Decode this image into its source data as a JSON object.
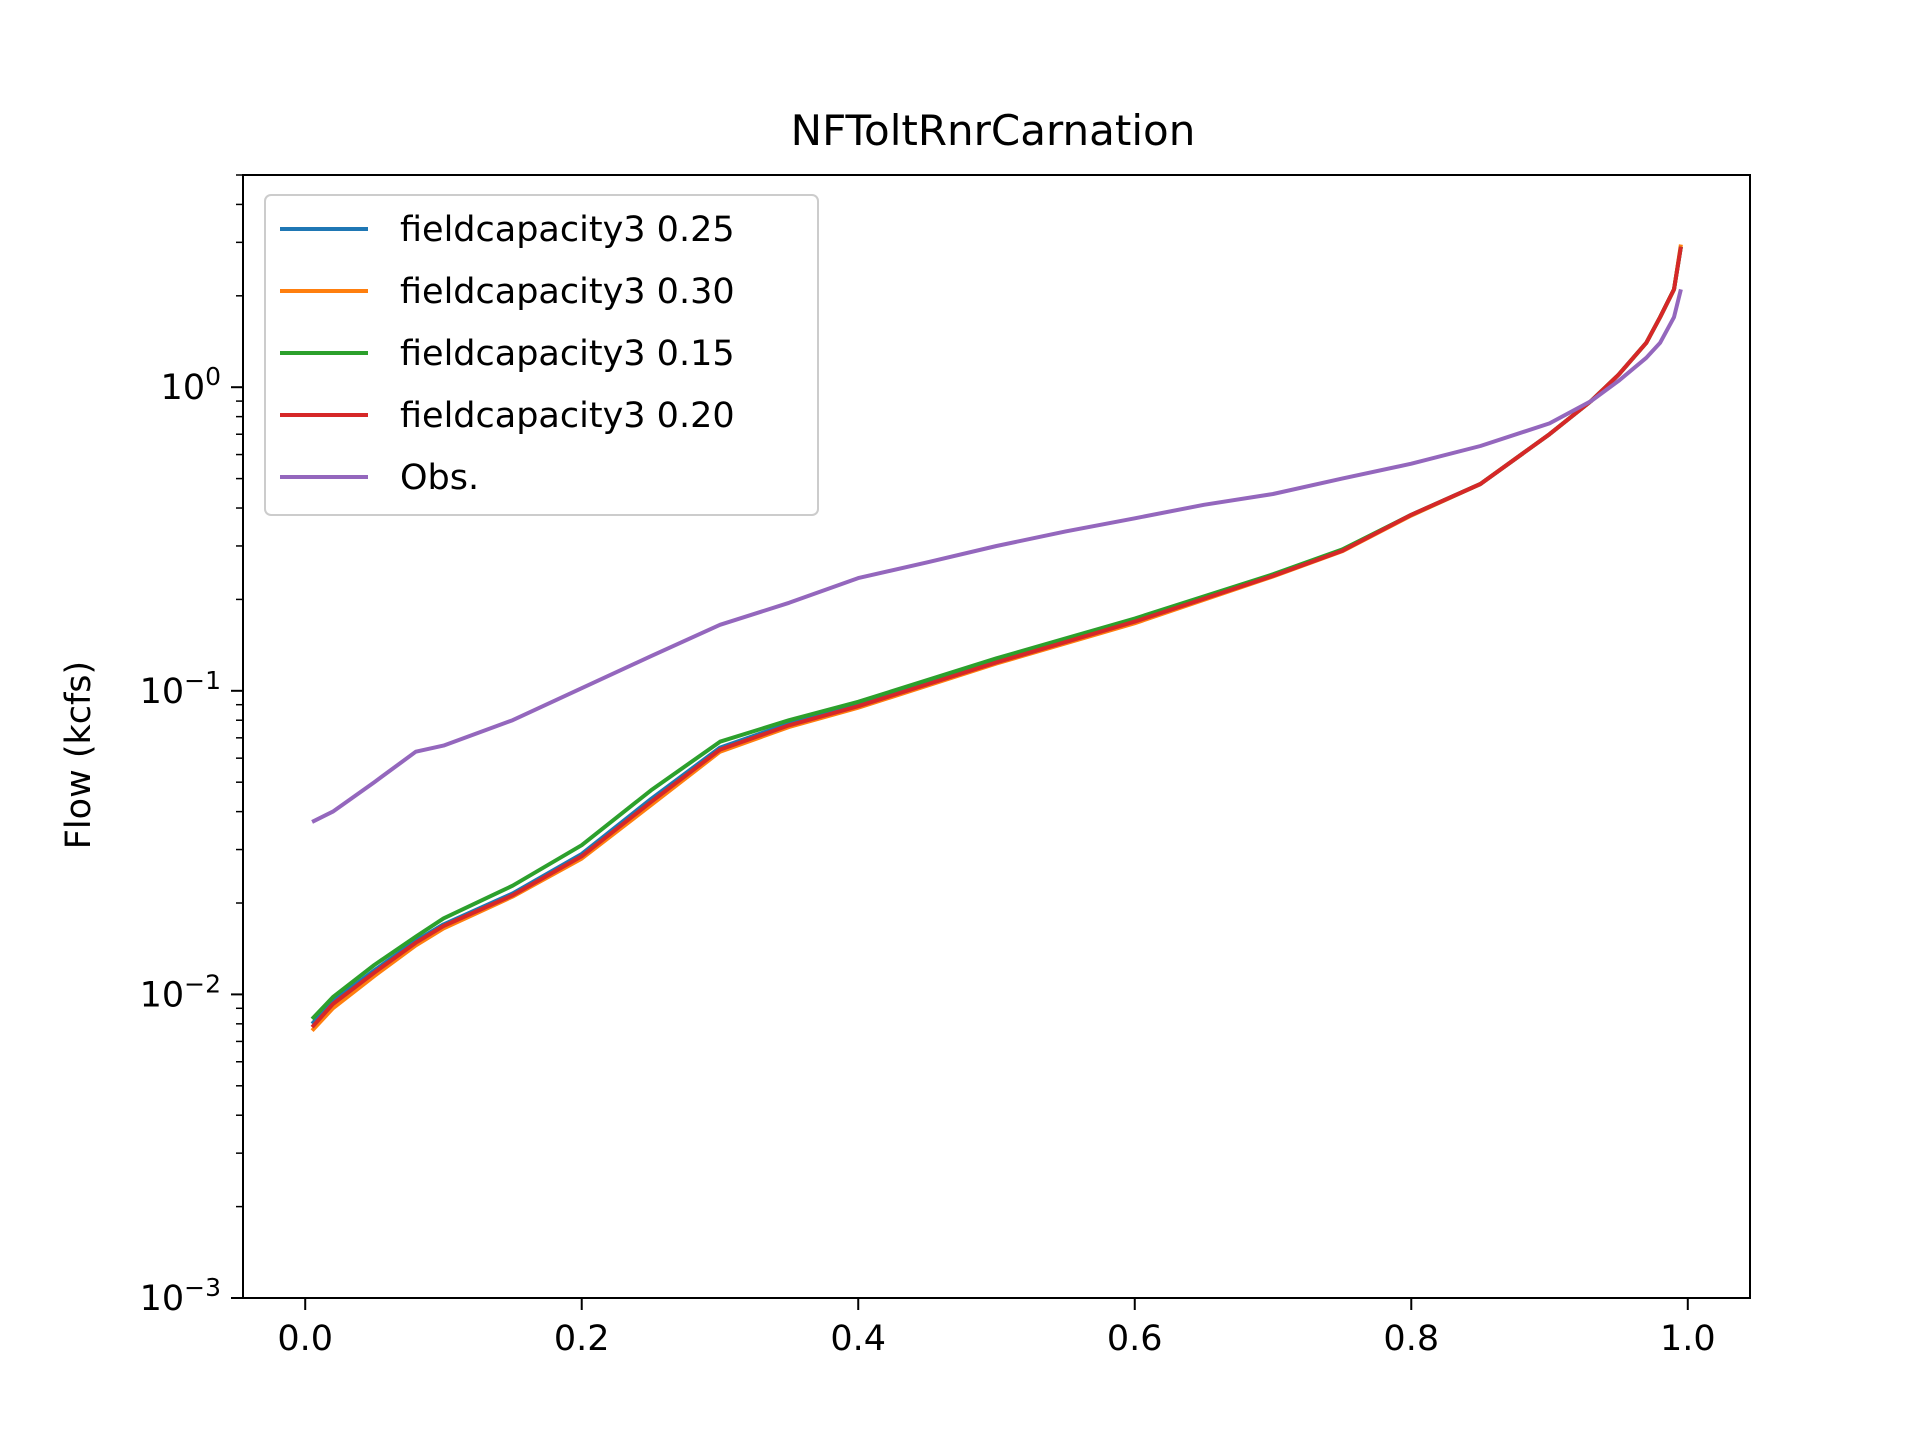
{
  "chart_data": {
    "type": "line",
    "title": "NFToltRnrCarnation",
    "xlabel": "",
    "ylabel": "Flow (kcfs)",
    "yscale": "log",
    "xlim": [
      -0.045,
      1.045
    ],
    "ylim": [
      0.001,
      5
    ],
    "x_ticks": [
      {
        "value": 0.0,
        "label": "0.0"
      },
      {
        "value": 0.2,
        "label": "0.2"
      },
      {
        "value": 0.4,
        "label": "0.4"
      },
      {
        "value": 0.6,
        "label": "0.6"
      },
      {
        "value": 0.8,
        "label": "0.8"
      },
      {
        "value": 1.0,
        "label": "1.0"
      }
    ],
    "y_ticks": [
      {
        "value": 0.001,
        "base": "10",
        "exp": "−3"
      },
      {
        "value": 0.01,
        "base": "10",
        "exp": "−2"
      },
      {
        "value": 0.1,
        "base": "10",
        "exp": "−1"
      },
      {
        "value": 1,
        "base": "10",
        "exp": "0"
      }
    ],
    "grid": false,
    "legend_position": "top-left",
    "series": [
      {
        "name": "fieldcapacity3 0.25",
        "color": "#1f77b4",
        "x": [
          0.005,
          0.02,
          0.05,
          0.08,
          0.1,
          0.15,
          0.2,
          0.25,
          0.3,
          0.35,
          0.4,
          0.5,
          0.6,
          0.7,
          0.75,
          0.8,
          0.85,
          0.9,
          0.93,
          0.95,
          0.97,
          0.98,
          0.99,
          0.995
        ],
        "y": [
          0.008,
          0.0095,
          0.012,
          0.015,
          0.017,
          0.0215,
          0.029,
          0.044,
          0.065,
          0.078,
          0.09,
          0.125,
          0.17,
          0.24,
          0.29,
          0.38,
          0.48,
          0.7,
          0.9,
          1.1,
          1.4,
          1.7,
          2.1,
          2.9
        ]
      },
      {
        "name": "fieldcapacity3 0.30",
        "color": "#ff7f0e",
        "x": [
          0.005,
          0.02,
          0.05,
          0.08,
          0.1,
          0.15,
          0.2,
          0.25,
          0.3,
          0.35,
          0.4,
          0.5,
          0.6,
          0.7,
          0.75,
          0.8,
          0.85,
          0.9,
          0.93,
          0.95,
          0.97,
          0.98,
          0.99,
          0.995
        ],
        "y": [
          0.0076,
          0.009,
          0.0115,
          0.0145,
          0.0165,
          0.021,
          0.028,
          0.042,
          0.063,
          0.076,
          0.088,
          0.123,
          0.167,
          0.238,
          0.288,
          0.378,
          0.48,
          0.7,
          0.9,
          1.1,
          1.4,
          1.7,
          2.1,
          2.95
        ]
      },
      {
        "name": "fieldcapacity3 0.15",
        "color": "#2ca02c",
        "x": [
          0.005,
          0.02,
          0.05,
          0.08,
          0.1,
          0.15,
          0.2,
          0.25,
          0.3,
          0.35,
          0.4,
          0.5,
          0.6,
          0.7,
          0.75,
          0.8,
          0.85,
          0.9,
          0.93,
          0.95,
          0.97,
          0.98,
          0.99,
          0.995
        ],
        "y": [
          0.0083,
          0.0098,
          0.0125,
          0.0155,
          0.0178,
          0.0228,
          0.031,
          0.047,
          0.068,
          0.08,
          0.092,
          0.128,
          0.173,
          0.242,
          0.292,
          0.38,
          0.48,
          0.7,
          0.9,
          1.1,
          1.4,
          1.7,
          2.1,
          2.9
        ]
      },
      {
        "name": "fieldcapacity3 0.20",
        "color": "#d62728",
        "x": [
          0.005,
          0.02,
          0.05,
          0.08,
          0.1,
          0.15,
          0.2,
          0.25,
          0.3,
          0.35,
          0.4,
          0.5,
          0.6,
          0.7,
          0.75,
          0.8,
          0.85,
          0.9,
          0.93,
          0.95,
          0.97,
          0.98,
          0.99,
          0.995
        ],
        "y": [
          0.0078,
          0.0093,
          0.0118,
          0.0148,
          0.0168,
          0.0212,
          0.0285,
          0.043,
          0.064,
          0.077,
          0.089,
          0.124,
          0.169,
          0.239,
          0.289,
          0.38,
          0.48,
          0.7,
          0.9,
          1.1,
          1.4,
          1.7,
          2.1,
          2.9
        ]
      },
      {
        "name": "Obs.",
        "color": "#9467bd",
        "x": [
          0.005,
          0.02,
          0.05,
          0.08,
          0.1,
          0.15,
          0.2,
          0.25,
          0.3,
          0.35,
          0.4,
          0.45,
          0.5,
          0.55,
          0.6,
          0.65,
          0.7,
          0.75,
          0.8,
          0.85,
          0.9,
          0.93,
          0.95,
          0.97,
          0.98,
          0.99,
          0.995
        ],
        "y": [
          0.037,
          0.04,
          0.05,
          0.063,
          0.066,
          0.08,
          0.102,
          0.13,
          0.165,
          0.195,
          0.235,
          0.265,
          0.3,
          0.335,
          0.37,
          0.41,
          0.445,
          0.5,
          0.56,
          0.64,
          0.76,
          0.9,
          1.05,
          1.25,
          1.4,
          1.7,
          2.1
        ]
      }
    ]
  }
}
